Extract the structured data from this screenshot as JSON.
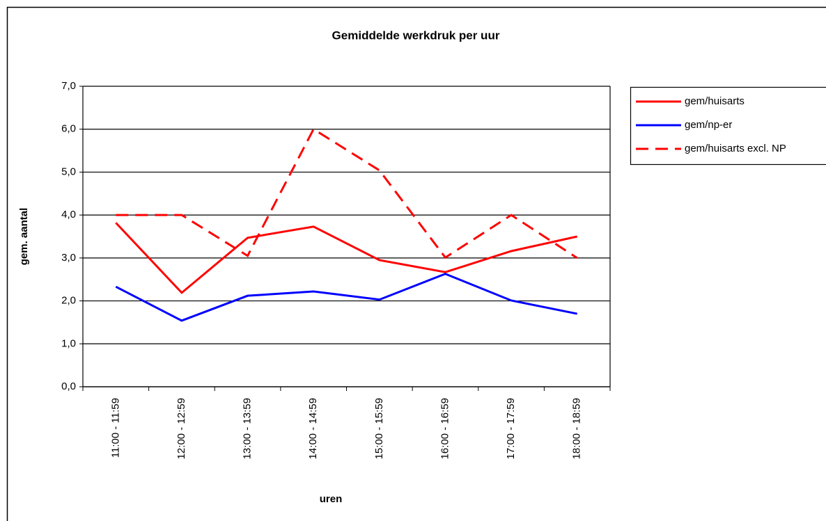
{
  "chart_data": {
    "type": "line",
    "title": "Gemiddelde werkdruk per uur",
    "x_label": "uren",
    "y_label": "gem. aantal",
    "categories": [
      "11:00 - 11:59",
      "12:00 - 12:59",
      "13:00 - 13:59",
      "14:00 - 14:59",
      "15:00 - 15:59",
      "16:00 - 16:59",
      "17:00 - 17:59",
      "18:00 - 18:59"
    ],
    "series": [
      {
        "name": "gem/huisarts",
        "color": "#ff0000",
        "dash": false,
        "values": [
          3.82,
          2.19,
          3.47,
          3.73,
          2.95,
          2.67,
          3.16,
          3.5
        ]
      },
      {
        "name": "gem/np-er",
        "color": "#0000ff",
        "dash": false,
        "values": [
          2.33,
          1.54,
          2.12,
          2.22,
          2.03,
          2.63,
          2.01,
          1.7
        ]
      },
      {
        "name": "gem/huisarts excl. NP",
        "color": "#ff0000",
        "dash": true,
        "values": [
          4.0,
          4.0,
          3.05,
          6.0,
          5.04,
          3.01,
          4.0,
          3.0
        ]
      }
    ],
    "ylim": [
      0,
      7
    ],
    "yticks": [
      {
        "value": 0,
        "label": "0,0"
      },
      {
        "value": 1,
        "label": "1,0"
      },
      {
        "value": 2,
        "label": "2,0"
      },
      {
        "value": 3,
        "label": "3,0"
      },
      {
        "value": 4,
        "label": "4,0"
      },
      {
        "value": 5,
        "label": "5,0"
      },
      {
        "value": 6,
        "label": "6,0"
      },
      {
        "value": 7,
        "label": "7,0"
      }
    ],
    "grid": true
  }
}
